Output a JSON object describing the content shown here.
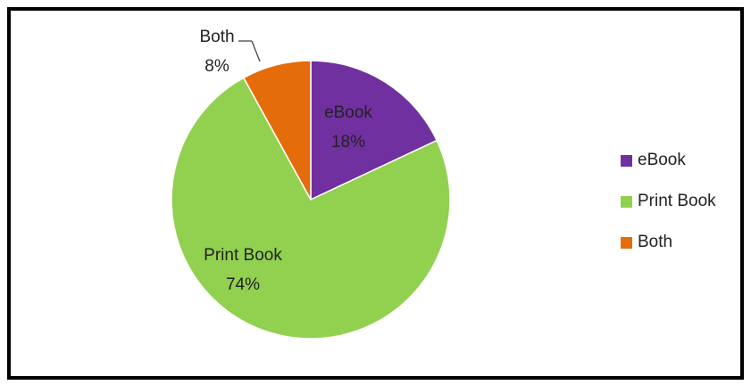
{
  "chart_data": {
    "type": "pie",
    "slices": [
      {
        "name": "eBook",
        "value": 18,
        "label": "eBook",
        "pct": "18%",
        "color": "#7030a0"
      },
      {
        "name": "Print Book",
        "value": 74,
        "label": "Print Book",
        "pct": "74%",
        "color": "#92d050"
      },
      {
        "name": "Both",
        "value": 8,
        "label": "Both",
        "pct": "8%",
        "color": "#e46c0a"
      }
    ],
    "start_angle_deg": 0,
    "direction": "clockwise",
    "legend_position": "right"
  }
}
